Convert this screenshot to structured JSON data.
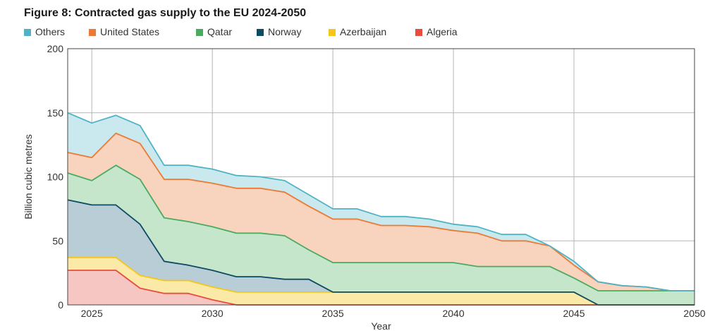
{
  "chart_data": {
    "type": "area",
    "title": "Figure 8: Contracted gas supply to the EU 2024-2050",
    "xlabel": "Year",
    "ylabel": "Billion cubic metres",
    "xlim": [
      2024,
      2050
    ],
    "ylim": [
      0,
      200
    ],
    "xticks": [
      "2025",
      "2030",
      "2035",
      "2040",
      "2045",
      "2050"
    ],
    "yticks": [
      "0",
      "50",
      "100",
      "150",
      "200"
    ],
    "grid": true,
    "legend_position": "top-left",
    "stacked": true,
    "x": [
      2024,
      2025,
      2026,
      2027,
      2028,
      2029,
      2030,
      2031,
      2032,
      2033,
      2034,
      2035,
      2036,
      2037,
      2038,
      2039,
      2040,
      2041,
      2042,
      2043,
      2044,
      2045,
      2046,
      2047,
      2048,
      2049,
      2050
    ],
    "series": [
      {
        "name": "Algeria",
        "color": "#e94c3d",
        "fill": "#f5c6c2",
        "values": [
          27,
          27,
          27,
          13,
          9,
          9,
          4,
          0,
          0,
          0,
          0,
          0,
          0,
          0,
          0,
          0,
          0,
          0,
          0,
          0,
          0,
          0,
          0,
          0,
          0,
          0,
          0
        ]
      },
      {
        "name": "Azerbaijan",
        "color": "#f5c518",
        "fill": "#fbe9a8",
        "values": [
          10,
          10,
          10,
          10,
          10,
          10,
          10,
          10,
          10,
          10,
          10,
          10,
          10,
          10,
          10,
          10,
          10,
          10,
          10,
          10,
          10,
          10,
          0,
          0,
          0,
          0,
          0
        ]
      },
      {
        "name": "Norway",
        "color": "#0d4a63",
        "fill": "#b9cdd6",
        "values": [
          45,
          41,
          41,
          40,
          15,
          12,
          13,
          12,
          12,
          10,
          10,
          0,
          0,
          0,
          0,
          0,
          0,
          0,
          0,
          0,
          0,
          0,
          0,
          0,
          0,
          0,
          0
        ]
      },
      {
        "name": "Qatar",
        "color": "#4aaa5f",
        "fill": "#c6e6cc",
        "values": [
          21,
          19,
          31,
          35,
          34,
          34,
          34,
          34,
          34,
          34,
          23,
          23,
          23,
          23,
          23,
          23,
          23,
          20,
          20,
          20,
          20,
          11,
          11,
          11,
          11,
          11,
          11
        ]
      },
      {
        "name": "United States",
        "color": "#ec7a34",
        "fill": "#f8d3bd",
        "values": [
          16,
          18,
          25,
          28,
          30,
          33,
          34,
          35,
          35,
          34,
          34,
          34,
          34,
          29,
          29,
          28,
          25,
          26,
          20,
          20,
          16,
          10,
          7,
          4,
          3,
          0,
          0
        ]
      },
      {
        "name": "Others",
        "color": "#4fb3c5",
        "fill": "#c9e9ef",
        "values": [
          31,
          27,
          14,
          14,
          11,
          11,
          11,
          10,
          9,
          9,
          9,
          8,
          8,
          7,
          7,
          6,
          5,
          5,
          5,
          5,
          0,
          3,
          0,
          0,
          0,
          0,
          0
        ]
      }
    ],
    "legend": [
      {
        "label": "Others",
        "color": "#4fb3c5"
      },
      {
        "label": "United States",
        "color": "#ec7a34"
      },
      {
        "label": "Qatar",
        "color": "#4aaa5f"
      },
      {
        "label": "Norway",
        "color": "#0d4a63"
      },
      {
        "label": "Azerbaijan",
        "color": "#f5c518"
      },
      {
        "label": "Algeria",
        "color": "#e94c3d"
      }
    ]
  }
}
